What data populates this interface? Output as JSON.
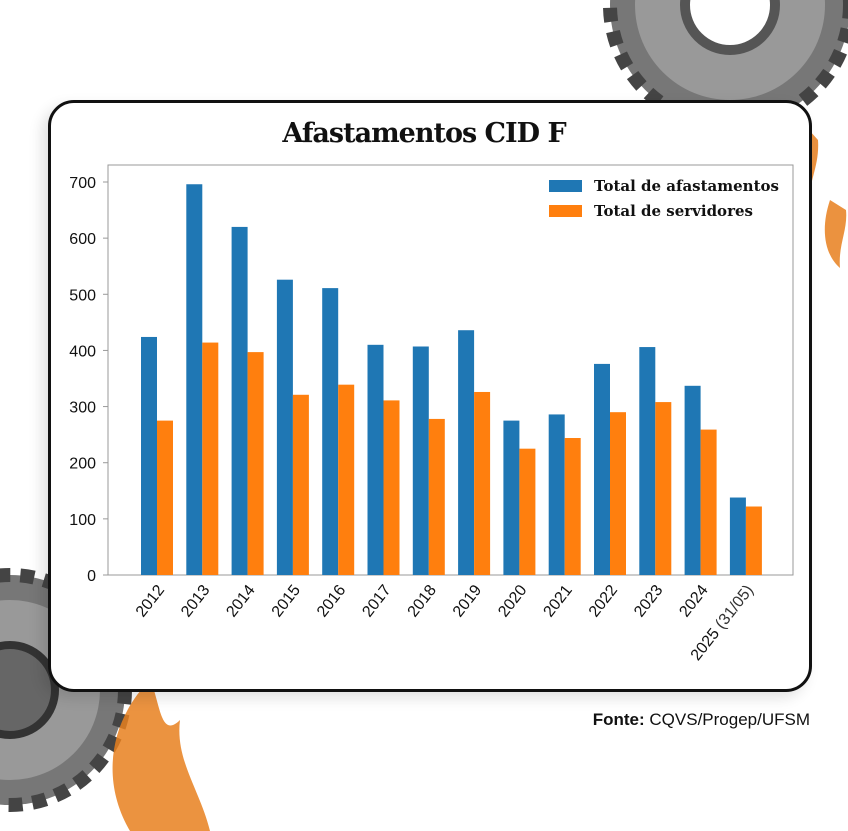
{
  "chart_data": {
    "type": "bar",
    "title": "Afastamentos CID F",
    "xlabel": "",
    "ylabel": "",
    "ylim": [
      0,
      700
    ],
    "yticks": [
      0,
      100,
      200,
      300,
      400,
      500,
      600,
      700
    ],
    "grid": false,
    "legend_position": "top-right",
    "categories": [
      "2012",
      "2013",
      "2014",
      "2015",
      "2016",
      "2017",
      "2018",
      "2019",
      "2020",
      "2021",
      "2022",
      "2023",
      "2024",
      "2025"
    ],
    "category_suffix_last": "(31/05)",
    "series": [
      {
        "name": "Total de afastamentos",
        "color": "#1f77b4",
        "values": [
          424,
          696,
          620,
          526,
          511,
          410,
          407,
          436,
          275,
          286,
          376,
          406,
          337,
          138
        ]
      },
      {
        "name": "Total de servidores",
        "color": "#ff7f0e",
        "values": [
          275,
          414,
          397,
          321,
          339,
          311,
          278,
          326,
          225,
          244,
          290,
          308,
          259,
          122
        ]
      }
    ]
  },
  "footer": {
    "label": "Fonte:",
    "source": "CQVS/Progep/UFSM"
  }
}
